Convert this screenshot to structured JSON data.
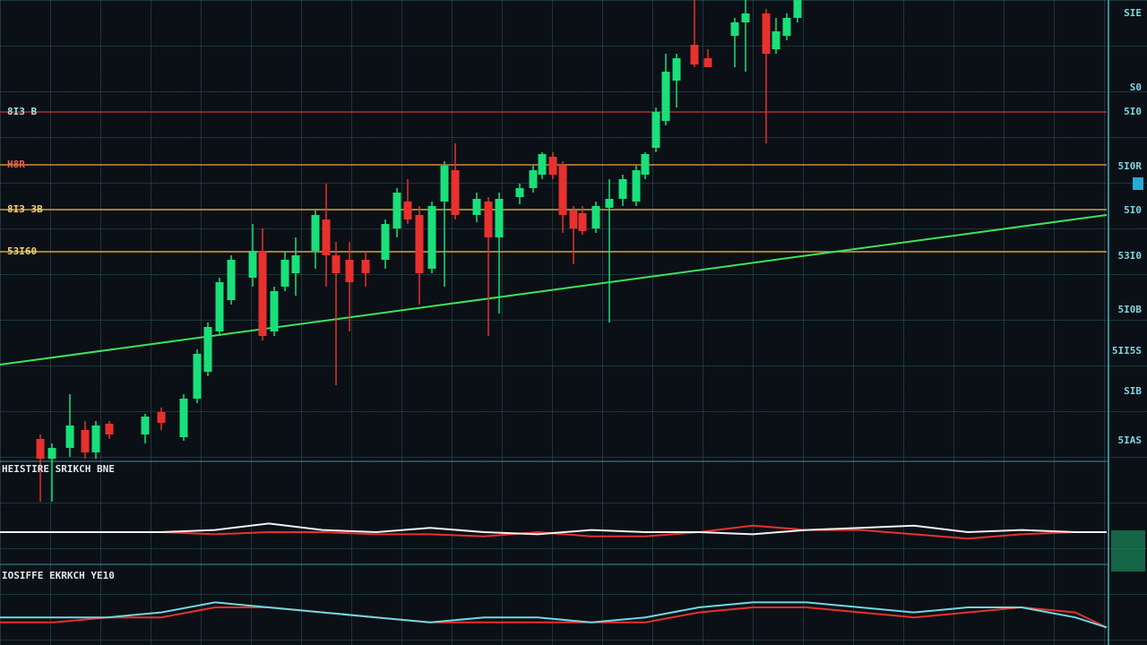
{
  "chart_data": {
    "type": "candlestick",
    "xlim": [
      0,
      1235
    ],
    "ylim": [
      0,
      515
    ],
    "grid": true,
    "colors": {
      "up": "#19e07a",
      "down": "#e8312e"
    },
    "candles": {
      "x": [
        45,
        58,
        78,
        95,
        107,
        122,
        162,
        180,
        205,
        220,
        232,
        245,
        258,
        282,
        293,
        306,
        318,
        330,
        352,
        364,
        375,
        390,
        408,
        430,
        443,
        455,
        468,
        482,
        496,
        508,
        532,
        545,
        557,
        580,
        595,
        605,
        617,
        628,
        640,
        650,
        665,
        680,
        695,
        710,
        720,
        732,
        743,
        755,
        775,
        790,
        820,
        832,
        855,
        866,
        878,
        890
      ],
      "open": [
        25,
        3,
        15,
        35,
        10,
        42,
        30,
        55,
        27,
        70,
        100,
        145,
        180,
        205,
        235,
        145,
        195,
        210,
        235,
        270,
        230,
        225,
        225,
        225,
        260,
        290,
        275,
        215,
        290,
        325,
        275,
        290,
        250,
        295,
        305,
        320,
        340,
        330,
        280,
        277,
        260,
        283,
        293,
        290,
        320,
        350,
        380,
        425,
        465,
        450,
        475,
        490,
        500,
        460,
        475,
        495
      ],
      "high": [
        30,
        20,
        75,
        45,
        45,
        45,
        53,
        60,
        75,
        125,
        155,
        205,
        230,
        265,
        260,
        195,
        235,
        250,
        280,
        310,
        245,
        245,
        235,
        270,
        305,
        315,
        285,
        290,
        335,
        355,
        300,
        295,
        300,
        310,
        330,
        345,
        345,
        335,
        285,
        285,
        290,
        315,
        320,
        330,
        345,
        395,
        455,
        455,
        515,
        460,
        495,
        515,
        505,
        495,
        500,
        515
      ],
      "low": [
        -45,
        -45,
        5,
        3,
        3,
        25,
        20,
        35,
        23,
        65,
        95,
        140,
        175,
        195,
        135,
        140,
        190,
        185,
        215,
        195,
        85,
        145,
        195,
        215,
        250,
        265,
        175,
        210,
        195,
        270,
        267,
        140,
        165,
        287,
        300,
        315,
        315,
        255,
        220,
        253,
        255,
        155,
        285,
        285,
        315,
        345,
        375,
        395,
        440,
        440,
        440,
        435,
        355,
        455,
        470,
        490
      ],
      "close": [
        3,
        15,
        40,
        10,
        40,
        30,
        50,
        43,
        70,
        120,
        150,
        200,
        225,
        235,
        140,
        190,
        225,
        230,
        275,
        230,
        210,
        200,
        210,
        265,
        300,
        270,
        210,
        285,
        330,
        275,
        293,
        250,
        293,
        305,
        325,
        343,
        320,
        275,
        260,
        257,
        285,
        293,
        315,
        325,
        343,
        390,
        435,
        450,
        443,
        440,
        490,
        500,
        455,
        480,
        495,
        515
      ]
    },
    "levels": [
      {
        "text": "8I3 B",
        "value": 390,
        "color": "#a8302c",
        "text_color": "#9fe0e6"
      },
      {
        "text": "H8R",
        "value": 331,
        "color": "#d08a3a",
        "text_color": "#f0604a"
      },
      {
        "text": "8I3 3B",
        "value": 281,
        "color": "#d9a23a",
        "text_color": "#f2d36a"
      },
      {
        "text": "53I60",
        "value": 234,
        "color": "#d9a23a",
        "text_color": "#f2d36a"
      }
    ],
    "axis_labels": [
      {
        "text": "SIE",
        "value": 500
      },
      {
        "text": "S0",
        "value": 417
      },
      {
        "text": "5I0",
        "value": 390
      },
      {
        "text": "5I0R",
        "value": 329
      },
      {
        "text": "5I0",
        "value": 280
      },
      {
        "text": "53I0",
        "value": 229
      },
      {
        "text": "5I0B",
        "value": 169
      },
      {
        "text": "5II5S",
        "value": 123
      },
      {
        "text": "SIB",
        "value": 78
      },
      {
        "text": "5IAS",
        "value": 23
      }
    ],
    "trendline": {
      "color": "#3fe25a",
      "x": [
        0,
        1235
      ],
      "values": [
        108,
        275
      ]
    },
    "indicators": [
      {
        "title": "HEISTIRE SRIKCH BNE",
        "ylim": [
          -10,
          10
        ],
        "x": [
          0,
          60,
          120,
          180,
          240,
          300,
          360,
          420,
          480,
          540,
          600,
          660,
          720,
          780,
          840,
          900,
          960,
          1020,
          1080,
          1140,
          1200,
          1235
        ],
        "series": [
          {
            "color": "#e8312e",
            "values": [
              0,
              0,
              0,
              0,
              -1,
              0,
              0,
              -1,
              -1,
              -2,
              0,
              -2,
              -2,
              0,
              3,
              1,
              1,
              -1,
              -3,
              -1,
              0,
              0
            ]
          },
          {
            "color": "#f2f2f2",
            "values": [
              0,
              0,
              0,
              0,
              1,
              4,
              1,
              0,
              2,
              0,
              -1,
              1,
              0,
              0,
              -1,
              1,
              2,
              3,
              0,
              1,
              0,
              0
            ]
          }
        ]
      },
      {
        "title": "IOSIFFE EKRKCH YE10",
        "ylim": [
          0,
          10
        ],
        "x": [
          0,
          60,
          120,
          180,
          240,
          300,
          360,
          420,
          480,
          540,
          600,
          660,
          720,
          780,
          840,
          900,
          960,
          1020,
          1080,
          1140,
          1200,
          1235
        ],
        "series": [
          {
            "color": "#e8312e",
            "values": [
              2,
              2,
              3,
              3,
              5,
              5,
              4,
              3,
              2,
              2,
              2,
              2,
              2,
              4,
              5,
              5,
              4,
              3,
              4,
              5,
              4,
              1
            ]
          },
          {
            "color": "#6fd8e0",
            "values": [
              3,
              3,
              3,
              4,
              6,
              5,
              4,
              3,
              2,
              3,
              3,
              2,
              3,
              5,
              6,
              6,
              5,
              4,
              5,
              5,
              3,
              1
            ]
          }
        ]
      }
    ]
  }
}
